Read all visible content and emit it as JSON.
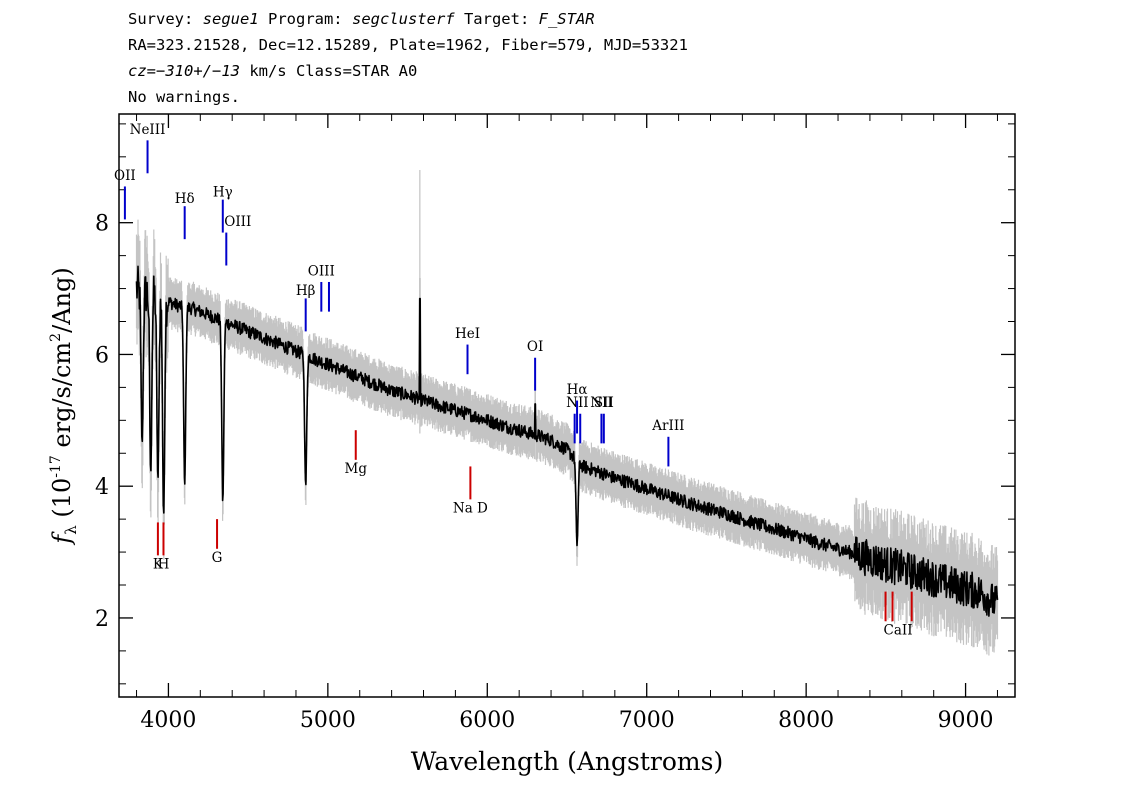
{
  "header": {
    "line1_a": "Survey: ",
    "survey": "segue1",
    "line1_b": " Program: ",
    "program": "segclusterf",
    "line1_c": " Target: ",
    "target": "F_STAR",
    "line2": "RA=323.21528, Dec=12.15289, Plate=1962, Fiber=579, MJD=53321",
    "cz": "cz=−310+/−13",
    "line3_b": " km/s Class=STAR A0",
    "line4": "No warnings."
  },
  "chart_data": {
    "type": "line",
    "xlabel": "Wavelength (Angstroms)",
    "ylabel": "f_λ (10^-17 erg/s/cm^2/Ang)",
    "xlim": [
      3690,
      9310
    ],
    "ylim": [
      0.8,
      9.65
    ],
    "xticks": [
      4000,
      5000,
      6000,
      7000,
      8000,
      9000
    ],
    "yticks": [
      2,
      4,
      6,
      8
    ],
    "grid": false,
    "series": [
      {
        "color": "#000000",
        "x": [
          3800,
          3850,
          3900,
          3950,
          4000,
          4050,
          4100,
          4150,
          4200,
          4250,
          4300,
          4350,
          4400,
          4500,
          4600,
          4700,
          4800,
          4900,
          5000,
          5100,
          5200,
          5300,
          5400,
          5500,
          5600,
          5700,
          5800,
          5900,
          6000,
          6100,
          6200,
          6300,
          6400,
          6500,
          6600,
          6700,
          6800,
          6900,
          7000,
          7100,
          7200,
          7300,
          7400,
          7500,
          7600,
          7700,
          7800,
          7900,
          8000,
          8100,
          8200,
          8300,
          8400,
          8500,
          8600,
          8700,
          8800,
          8900,
          9000,
          9100,
          9200
        ],
        "y": [
          7.0,
          6.95,
          6.9,
          6.85,
          6.8,
          6.75,
          6.72,
          6.7,
          6.65,
          6.6,
          6.55,
          6.5,
          6.45,
          6.35,
          6.25,
          6.15,
          6.05,
          5.95,
          5.85,
          5.75,
          5.65,
          5.55,
          5.45,
          5.38,
          5.3,
          5.22,
          5.15,
          5.08,
          5.0,
          4.92,
          4.85,
          4.78,
          4.7,
          4.55,
          4.3,
          4.22,
          4.12,
          4.05,
          3.96,
          3.88,
          3.8,
          3.72,
          3.65,
          3.58,
          3.5,
          3.42,
          3.35,
          3.28,
          3.2,
          3.12,
          3.05,
          2.98,
          2.9,
          2.82,
          2.75,
          2.68,
          2.6,
          2.52,
          2.45,
          2.38,
          2.2
        ]
      }
    ],
    "absorption_dips": [
      {
        "x": 3835,
        "y": 4.65
      },
      {
        "x": 3889,
        "y": 4.2
      },
      {
        "x": 3934,
        "y": 4.1
      },
      {
        "x": 3970,
        "y": 3.55
      },
      {
        "x": 4102,
        "y": 4.0
      },
      {
        "x": 4341,
        "y": 3.75
      },
      {
        "x": 4861,
        "y": 4.0
      },
      {
        "x": 6563,
        "y": 3.1
      }
    ],
    "spikes": [
      {
        "x": 5577,
        "y": 6.85
      },
      {
        "x": 6300,
        "y": 5.25
      }
    ],
    "lines": [
      {
        "label": "OII",
        "x": 3727,
        "y0": 8.05,
        "y1": 8.55,
        "ty": 8.65,
        "color": "#0000cc",
        "align": "middle"
      },
      {
        "label": "NeIII",
        "x": 3869,
        "y0": 8.75,
        "y1": 9.25,
        "ty": 9.35,
        "color": "#0000cc",
        "align": "middle"
      },
      {
        "label": "Hδ",
        "x": 4102,
        "y0": 7.75,
        "y1": 8.25,
        "ty": 8.3,
        "color": "#0000cc",
        "align": "middle"
      },
      {
        "label": "Hγ",
        "x": 4341,
        "y0": 7.85,
        "y1": 8.35,
        "ty": 8.4,
        "color": "#0000cc",
        "align": "middle"
      },
      {
        "label": "OIII",
        "x": 4363,
        "y0": 7.35,
        "y1": 7.85,
        "ty": 7.95,
        "color": "#0000cc",
        "align": "start"
      },
      {
        "label": "Hβ",
        "x": 4861,
        "y0": 6.35,
        "y1": 6.85,
        "ty": 6.9,
        "color": "#0000cc",
        "align": "middle"
      },
      {
        "label": "OIII",
        "x": 4959,
        "y0": 6.65,
        "y1": 7.1,
        "ty": 7.2,
        "color": "#0000cc",
        "align": "middle"
      },
      {
        "label": "",
        "x": 5007,
        "y0": 6.65,
        "y1": 7.1,
        "ty": 0,
        "color": "#0000cc",
        "align": "middle"
      },
      {
        "label": "HeI",
        "x": 5876,
        "y0": 5.7,
        "y1": 6.15,
        "ty": 6.25,
        "color": "#0000cc",
        "align": "middle"
      },
      {
        "label": "OI",
        "x": 6300,
        "y0": 5.45,
        "y1": 5.95,
        "ty": 6.05,
        "color": "#0000cc",
        "align": "middle"
      },
      {
        "label": "NII",
        "x": 6548,
        "y0": 4.65,
        "y1": 5.1,
        "ty": 5.2,
        "color": "#0000cc",
        "align": "end"
      },
      {
        "label": "Hα",
        "x": 6563,
        "y0": 4.8,
        "y1": 5.3,
        "ty": 5.4,
        "color": "#0000cc",
        "align": "middle"
      },
      {
        "label": "",
        "x": 6583,
        "y0": 4.65,
        "y1": 5.1,
        "ty": 0,
        "color": "#0000cc",
        "align": "middle"
      },
      {
        "label": "NII",
        "x": 6716,
        "y0": 4.65,
        "y1": 5.1,
        "ty": 5.2,
        "color": "#0000cc",
        "align": "middle"
      },
      {
        "label": "SII",
        "x": 6731,
        "y0": 4.65,
        "y1": 5.1,
        "ty": 5.2,
        "color": "#0000cc",
        "align": "middle"
      },
      {
        "label": "ArIII",
        "x": 7136,
        "y0": 4.3,
        "y1": 4.75,
        "ty": 4.85,
        "color": "#0000cc",
        "align": "middle"
      },
      {
        "label": "K",
        "x": 3934,
        "y0": 2.95,
        "y1": 3.45,
        "ty": 2.75,
        "color": "#cc0000",
        "align": "middle"
      },
      {
        "label": "H",
        "x": 3969,
        "y0": 2.95,
        "y1": 3.45,
        "ty": 2.75,
        "color": "#cc0000",
        "align": "middle"
      },
      {
        "label": "G",
        "x": 4305,
        "y0": 3.05,
        "y1": 3.5,
        "ty": 2.85,
        "color": "#cc0000",
        "align": "middle"
      },
      {
        "label": "Mg",
        "x": 5175,
        "y0": 4.4,
        "y1": 4.85,
        "ty": 4.2,
        "color": "#cc0000",
        "align": "middle"
      },
      {
        "label": "Na D",
        "x": 5894,
        "y0": 3.8,
        "y1": 4.3,
        "ty": 3.6,
        "color": "#cc0000",
        "align": "middle"
      },
      {
        "label": "CaII",
        "x": 8498,
        "y0": 1.95,
        "y1": 2.4,
        "ty": 1.75,
        "color": "#cc0000",
        "align": "start"
      },
      {
        "label": "",
        "x": 8542,
        "y0": 1.95,
        "y1": 2.4,
        "ty": 0,
        "color": "#cc0000",
        "align": "middle"
      },
      {
        "label": "",
        "x": 8662,
        "y0": 1.95,
        "y1": 2.4,
        "ty": 0,
        "color": "#cc0000",
        "align": "middle"
      }
    ]
  }
}
